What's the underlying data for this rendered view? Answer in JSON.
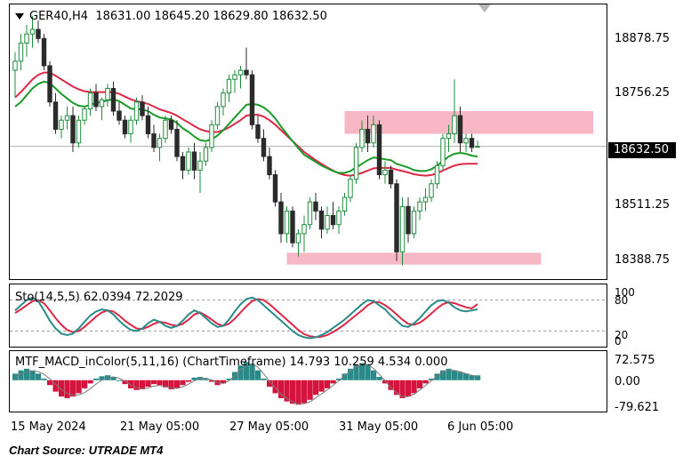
{
  "header": {
    "symbol": "GER40,H4",
    "open": "18631.00",
    "high": "18645.20",
    "low": "18629.80",
    "close": "18632.50"
  },
  "price_axis": [
    "18878.75",
    "18756.25",
    "18511.25",
    "18388.75"
  ],
  "current_price": "18632.50",
  "stoch": {
    "label": "Sto(14,5,5) 62.0394 72.2029",
    "levels": [
      "100",
      "80",
      "20",
      "0"
    ]
  },
  "macd": {
    "label": "MTF_MACD_inColor(5,11,16) (ChartTimeframe) 14.793 10.259 4.534 0.000",
    "levels": [
      "72.575",
      "0.00",
      "-79.621"
    ]
  },
  "time_axis": [
    "15 May 2024",
    "21 May 05:00",
    "27 May 05:00",
    "31 May 05:00",
    "6 Jun 05:00"
  ],
  "source": "Chart Source: UTRADE MT4",
  "colors": {
    "up_candle": "#1e8c3c",
    "down_candle": "#2b2b2b",
    "ma_green": "#1a9a28",
    "ma_red": "#dc2846",
    "zone": "#f6a5b6",
    "stoch_main": "#2a8a8a",
    "stoch_signal": "#dc2846",
    "macd_pos": "#2a8a8a",
    "macd_neg": "#d4143c"
  },
  "icons": {
    "collapse": "triangle-down-icon"
  },
  "chart_data": {
    "type": "candlestick",
    "symbol": "GER40",
    "timeframe": "H4",
    "candles": [
      {
        "o": 18800,
        "h": 18840,
        "l": 18740,
        "c": 18820
      },
      {
        "o": 18820,
        "h": 18880,
        "l": 18800,
        "c": 18860
      },
      {
        "o": 18860,
        "h": 18900,
        "l": 18830,
        "c": 18880
      },
      {
        "o": 18880,
        "h": 18920,
        "l": 18850,
        "c": 18890
      },
      {
        "o": 18890,
        "h": 18910,
        "l": 18860,
        "c": 18870
      },
      {
        "o": 18870,
        "h": 18880,
        "l": 18800,
        "c": 18810
      },
      {
        "o": 18810,
        "h": 18820,
        "l": 18720,
        "c": 18730
      },
      {
        "o": 18730,
        "h": 18750,
        "l": 18660,
        "c": 18670
      },
      {
        "o": 18670,
        "h": 18700,
        "l": 18650,
        "c": 18690
      },
      {
        "o": 18690,
        "h": 18720,
        "l": 18670,
        "c": 18700
      },
      {
        "o": 18700,
        "h": 18720,
        "l": 18620,
        "c": 18640
      },
      {
        "o": 18640,
        "h": 18700,
        "l": 18630,
        "c": 18690
      },
      {
        "o": 18690,
        "h": 18720,
        "l": 18680,
        "c": 18715
      },
      {
        "o": 18715,
        "h": 18760,
        "l": 18700,
        "c": 18750
      },
      {
        "o": 18750,
        "h": 18770,
        "l": 18710,
        "c": 18720
      },
      {
        "o": 18720,
        "h": 18740,
        "l": 18690,
        "c": 18735
      },
      {
        "o": 18735,
        "h": 18770,
        "l": 18720,
        "c": 18760
      },
      {
        "o": 18760,
        "h": 18775,
        "l": 18700,
        "c": 18710
      },
      {
        "o": 18710,
        "h": 18730,
        "l": 18680,
        "c": 18690
      },
      {
        "o": 18690,
        "h": 18700,
        "l": 18650,
        "c": 18660
      },
      {
        "o": 18660,
        "h": 18700,
        "l": 18640,
        "c": 18690
      },
      {
        "o": 18690,
        "h": 18740,
        "l": 18680,
        "c": 18730
      },
      {
        "o": 18730,
        "h": 18745,
        "l": 18690,
        "c": 18700
      },
      {
        "o": 18700,
        "h": 18720,
        "l": 18650,
        "c": 18660
      },
      {
        "o": 18660,
        "h": 18680,
        "l": 18620,
        "c": 18630
      },
      {
        "o": 18630,
        "h": 18660,
        "l": 18600,
        "c": 18650
      },
      {
        "o": 18650,
        "h": 18700,
        "l": 18640,
        "c": 18690
      },
      {
        "o": 18690,
        "h": 18700,
        "l": 18660,
        "c": 18670
      },
      {
        "o": 18670,
        "h": 18690,
        "l": 18600,
        "c": 18610
      },
      {
        "o": 18610,
        "h": 18620,
        "l": 18560,
        "c": 18580
      },
      {
        "o": 18580,
        "h": 18630,
        "l": 18570,
        "c": 18620
      },
      {
        "o": 18620,
        "h": 18640,
        "l": 18560,
        "c": 18580
      },
      {
        "o": 18580,
        "h": 18620,
        "l": 18530,
        "c": 18600
      },
      {
        "o": 18600,
        "h": 18640,
        "l": 18590,
        "c": 18630
      },
      {
        "o": 18630,
        "h": 18690,
        "l": 18620,
        "c": 18680
      },
      {
        "o": 18680,
        "h": 18730,
        "l": 18670,
        "c": 18720
      },
      {
        "o": 18720,
        "h": 18760,
        "l": 18700,
        "c": 18750
      },
      {
        "o": 18750,
        "h": 18790,
        "l": 18730,
        "c": 18780
      },
      {
        "o": 18780,
        "h": 18800,
        "l": 18750,
        "c": 18790
      },
      {
        "o": 18790,
        "h": 18810,
        "l": 18760,
        "c": 18800
      },
      {
        "o": 18800,
        "h": 18850,
        "l": 18780,
        "c": 18790
      },
      {
        "o": 18790,
        "h": 18800,
        "l": 18670,
        "c": 18680
      },
      {
        "o": 18680,
        "h": 18700,
        "l": 18640,
        "c": 18650
      },
      {
        "o": 18650,
        "h": 18670,
        "l": 18600,
        "c": 18610
      },
      {
        "o": 18610,
        "h": 18630,
        "l": 18560,
        "c": 18570
      },
      {
        "o": 18570,
        "h": 18580,
        "l": 18500,
        "c": 18510
      },
      {
        "o": 18510,
        "h": 18530,
        "l": 18420,
        "c": 18440
      },
      {
        "o": 18440,
        "h": 18500,
        "l": 18420,
        "c": 18490
      },
      {
        "o": 18490,
        "h": 18500,
        "l": 18410,
        "c": 18420
      },
      {
        "o": 18420,
        "h": 18450,
        "l": 18390,
        "c": 18440
      },
      {
        "o": 18440,
        "h": 18480,
        "l": 18400,
        "c": 18460
      },
      {
        "o": 18460,
        "h": 18520,
        "l": 18450,
        "c": 18510
      },
      {
        "o": 18510,
        "h": 18530,
        "l": 18470,
        "c": 18490
      },
      {
        "o": 18490,
        "h": 18500,
        "l": 18430,
        "c": 18450
      },
      {
        "o": 18450,
        "h": 18500,
        "l": 18440,
        "c": 18480
      },
      {
        "o": 18480,
        "h": 18510,
        "l": 18450,
        "c": 18460
      },
      {
        "o": 18460,
        "h": 18500,
        "l": 18440,
        "c": 18490
      },
      {
        "o": 18490,
        "h": 18530,
        "l": 18480,
        "c": 18520
      },
      {
        "o": 18520,
        "h": 18570,
        "l": 18510,
        "c": 18560
      },
      {
        "o": 18560,
        "h": 18640,
        "l": 18550,
        "c": 18630
      },
      {
        "o": 18630,
        "h": 18690,
        "l": 18620,
        "c": 18670
      },
      {
        "o": 18670,
        "h": 18700,
        "l": 18620,
        "c": 18640
      },
      {
        "o": 18640,
        "h": 18700,
        "l": 18630,
        "c": 18680
      },
      {
        "o": 18680,
        "h": 18690,
        "l": 18560,
        "c": 18570
      },
      {
        "o": 18570,
        "h": 18600,
        "l": 18550,
        "c": 18580
      },
      {
        "o": 18580,
        "h": 18590,
        "l": 18540,
        "c": 18550
      },
      {
        "o": 18550,
        "h": 18560,
        "l": 18380,
        "c": 18400
      },
      {
        "o": 18400,
        "h": 18520,
        "l": 18370,
        "c": 18500
      },
      {
        "o": 18500,
        "h": 18520,
        "l": 18420,
        "c": 18440
      },
      {
        "o": 18440,
        "h": 18500,
        "l": 18430,
        "c": 18490
      },
      {
        "o": 18490,
        "h": 18520,
        "l": 18470,
        "c": 18510
      },
      {
        "o": 18510,
        "h": 18540,
        "l": 18490,
        "c": 18520
      },
      {
        "o": 18520,
        "h": 18560,
        "l": 18510,
        "c": 18550
      },
      {
        "o": 18550,
        "h": 18600,
        "l": 18540,
        "c": 18590
      },
      {
        "o": 18590,
        "h": 18660,
        "l": 18580,
        "c": 18650
      },
      {
        "o": 18650,
        "h": 18680,
        "l": 18620,
        "c": 18660
      },
      {
        "o": 18660,
        "h": 18780,
        "l": 18640,
        "c": 18700
      },
      {
        "o": 18700,
        "h": 18720,
        "l": 18620,
        "c": 18640
      },
      {
        "o": 18640,
        "h": 18660,
        "l": 18620,
        "c": 18650
      },
      {
        "o": 18650,
        "h": 18660,
        "l": 18620,
        "c": 18630
      },
      {
        "o": 18631.0,
        "h": 18645.2,
        "l": 18629.8,
        "c": 18632.5
      }
    ],
    "ma_fast": [
      18720,
      18730,
      18745,
      18760,
      18770,
      18775,
      18772,
      18760,
      18748,
      18738,
      18728,
      18722,
      18720,
      18724,
      18728,
      18730,
      18734,
      18736,
      18732,
      18724,
      18716,
      18714,
      18714,
      18710,
      18702,
      18696,
      18694,
      18692,
      18684,
      18672,
      18664,
      18654,
      18646,
      18644,
      18648,
      18656,
      18668,
      18682,
      18696,
      18710,
      18724,
      18726,
      18724,
      18718,
      18708,
      18694,
      18676,
      18660,
      18644,
      18628,
      18614,
      18606,
      18598,
      18590,
      18584,
      18578,
      18574,
      18574,
      18578,
      18586,
      18594,
      18602,
      18608,
      18606,
      18604,
      18602,
      18594,
      18590,
      18586,
      18580,
      18578,
      18578,
      18582,
      18590,
      18600,
      18610,
      18616,
      18618,
      18616,
      18612,
      18610
    ],
    "ma_slow": [
      18740,
      18752,
      18766,
      18780,
      18790,
      18795,
      18795,
      18788,
      18780,
      18772,
      18764,
      18758,
      18754,
      18752,
      18752,
      18752,
      18752,
      18752,
      18748,
      18742,
      18736,
      18732,
      18729,
      18726,
      18720,
      18714,
      18710,
      18706,
      18700,
      18692,
      18685,
      18677,
      18670,
      18666,
      18664,
      18664,
      18668,
      18674,
      18682,
      18690,
      18700,
      18702,
      18702,
      18698,
      18690,
      18680,
      18668,
      18656,
      18644,
      18632,
      18620,
      18611,
      18602,
      18594,
      18586,
      18579,
      18573,
      18569,
      18568,
      18570,
      18574,
      18579,
      18584,
      18585,
      18585,
      18585,
      18581,
      18578,
      18575,
      18571,
      18569,
      18568,
      18569,
      18573,
      18579,
      18585,
      18590,
      18593,
      18594,
      18594,
      18594
    ],
    "zones": [
      {
        "from": 18660,
        "to": 18710,
        "start_index": 57,
        "end_index": 100
      },
      {
        "from": 18372,
        "to": 18398,
        "start_index": 47,
        "end_index": 91
      }
    ],
    "ylim": [
      18340,
      18945
    ],
    "yticks": [
      18878.75,
      18756.25,
      18511.25,
      18388.75
    ],
    "xticks": [
      "15 May 2024",
      "21 May 05:00",
      "27 May 05:00",
      "31 May 05:00",
      "6 Jun 05:00"
    ],
    "stochastic": {
      "params": "14,5,5",
      "main_last": 62.0394,
      "signal_last": 72.2029,
      "levels": [
        80,
        20
      ],
      "main": [
        60,
        70,
        80,
        85,
        78,
        60,
        40,
        25,
        15,
        12,
        15,
        25,
        38,
        50,
        58,
        62,
        60,
        52,
        40,
        30,
        22,
        20,
        25,
        35,
        42,
        38,
        30,
        26,
        30,
        40,
        52,
        60,
        55,
        45,
        35,
        28,
        30,
        42,
        58,
        72,
        82,
        85,
        80,
        70,
        60,
        50,
        40,
        30,
        20,
        12,
        8,
        6,
        8,
        12,
        18,
        26,
        34,
        42,
        52,
        62,
        72,
        80,
        78,
        70,
        62,
        50,
        40,
        30,
        28,
        35,
        45,
        58,
        70,
        78,
        80,
        75,
        66,
        60,
        58,
        60,
        62
      ],
      "signal": [
        55,
        62,
        70,
        78,
        80,
        74,
        60,
        45,
        32,
        22,
        18,
        20,
        28,
        38,
        48,
        56,
        60,
        58,
        50,
        40,
        32,
        25,
        24,
        28,
        34,
        38,
        36,
        32,
        30,
        34,
        42,
        52,
        56,
        50,
        42,
        34,
        30,
        34,
        44,
        56,
        68,
        78,
        82,
        80,
        72,
        62,
        52,
        42,
        32,
        22,
        14,
        10,
        8,
        9,
        12,
        18,
        25,
        33,
        42,
        51,
        60,
        70,
        76,
        76,
        70,
        62,
        52,
        42,
        34,
        32,
        36,
        44,
        54,
        64,
        72,
        76,
        74,
        70,
        66,
        64,
        72
      ]
    },
    "macd": {
      "params": "5,11,16",
      "timeframe": "ChartTimeframe",
      "values_last": [
        14.793,
        10.259,
        4.534,
        0.0
      ],
      "ylim": [
        -79.621,
        72.575
      ],
      "hist": [
        20,
        30,
        35,
        30,
        20,
        5,
        -15,
        -35,
        -50,
        -55,
        -50,
        -40,
        -25,
        -10,
        5,
        12,
        15,
        10,
        0,
        -12,
        -25,
        -30,
        -28,
        -20,
        -12,
        -15,
        -22,
        -28,
        -25,
        -15,
        -5,
        8,
        10,
        5,
        -5,
        -15,
        -10,
        5,
        25,
        45,
        55,
        50,
        30,
        5,
        -20,
        -40,
        -55,
        -65,
        -72,
        -75,
        -70,
        -60,
        -45,
        -35,
        -25,
        -10,
        5,
        20,
        35,
        45,
        52,
        48,
        30,
        10,
        -10,
        -30,
        -45,
        -55,
        -50,
        -40,
        -25,
        -10,
        5,
        20,
        30,
        35,
        30,
        25,
        20,
        15,
        14.8
      ],
      "signal": [
        10,
        18,
        25,
        28,
        26,
        18,
        4,
        -12,
        -28,
        -40,
        -46,
        -45,
        -38,
        -26,
        -12,
        0,
        8,
        10,
        6,
        -3,
        -14,
        -22,
        -26,
        -24,
        -18,
        -16,
        -19,
        -24,
        -25,
        -20,
        -12,
        -2,
        5,
        6,
        1,
        -8,
        -10,
        -2,
        14,
        32,
        46,
        50,
        40,
        20,
        -4,
        -24,
        -42,
        -56,
        -66,
        -72,
        -72,
        -66,
        -54,
        -42,
        -30,
        -16,
        -2,
        14,
        28,
        40,
        48,
        48,
        36,
        18,
        -2,
        -22,
        -38,
        -50,
        -50,
        -43,
        -30,
        -16,
        -2,
        12,
        24,
        30,
        30,
        26,
        20,
        15,
        10.259
      ]
    }
  }
}
